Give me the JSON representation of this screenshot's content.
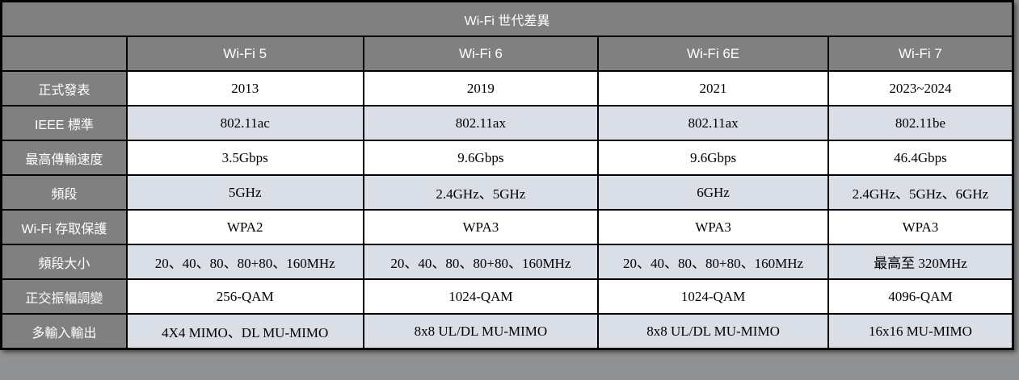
{
  "page": {
    "colors": {
      "outer_bg": "#8f9193"
    }
  },
  "table": {
    "title": "Wi-Fi 世代差異",
    "colors": {
      "header_bg": "#808080",
      "header_text": "#ffffff",
      "row_bg": "#ffffff",
      "row_alt_bg": "#d9dee7",
      "border_color": "#000000",
      "cell_text": "#000000"
    },
    "columns": [
      "Wi-Fi 5",
      "Wi-Fi 6",
      "Wi-Fi 6E",
      "Wi-Fi 7"
    ],
    "rows": [
      {
        "label": "正式發表",
        "values": [
          "2013",
          "2019",
          "2021",
          "2023~2024"
        ]
      },
      {
        "label": "IEEE 標準",
        "values": [
          "802.11ac",
          "802.11ax",
          "802.11ax",
          "802.11be"
        ]
      },
      {
        "label": "最高傳輸速度",
        "values": [
          "3.5Gbps",
          "9.6Gbps",
          "9.6Gbps",
          "46.4Gbps"
        ]
      },
      {
        "label": "頻段",
        "values": [
          "5GHz",
          "2.4GHz、5GHz",
          "6GHz",
          "2.4GHz、5GHz、6GHz"
        ]
      },
      {
        "label": "Wi-Fi 存取保護",
        "values": [
          "WPA2",
          "WPA3",
          "WPA3",
          "WPA3"
        ]
      },
      {
        "label": "頻段大小",
        "values": [
          "20、40、80、80+80、160MHz",
          "20、40、80、80+80、160MHz",
          "20、40、80、80+80、160MHz",
          "最高至 320MHz"
        ]
      },
      {
        "label": "正交振幅調變",
        "values": [
          "256-QAM",
          "1024-QAM",
          "1024-QAM",
          "4096-QAM"
        ]
      },
      {
        "label": "多輸入輸出",
        "values": [
          "4X4 MIMO、DL MU-MIMO",
          "8x8 UL/DL MU-MIMO",
          "8x8 UL/DL MU-MIMO",
          "16x16 MU-MIMO"
        ]
      }
    ]
  }
}
